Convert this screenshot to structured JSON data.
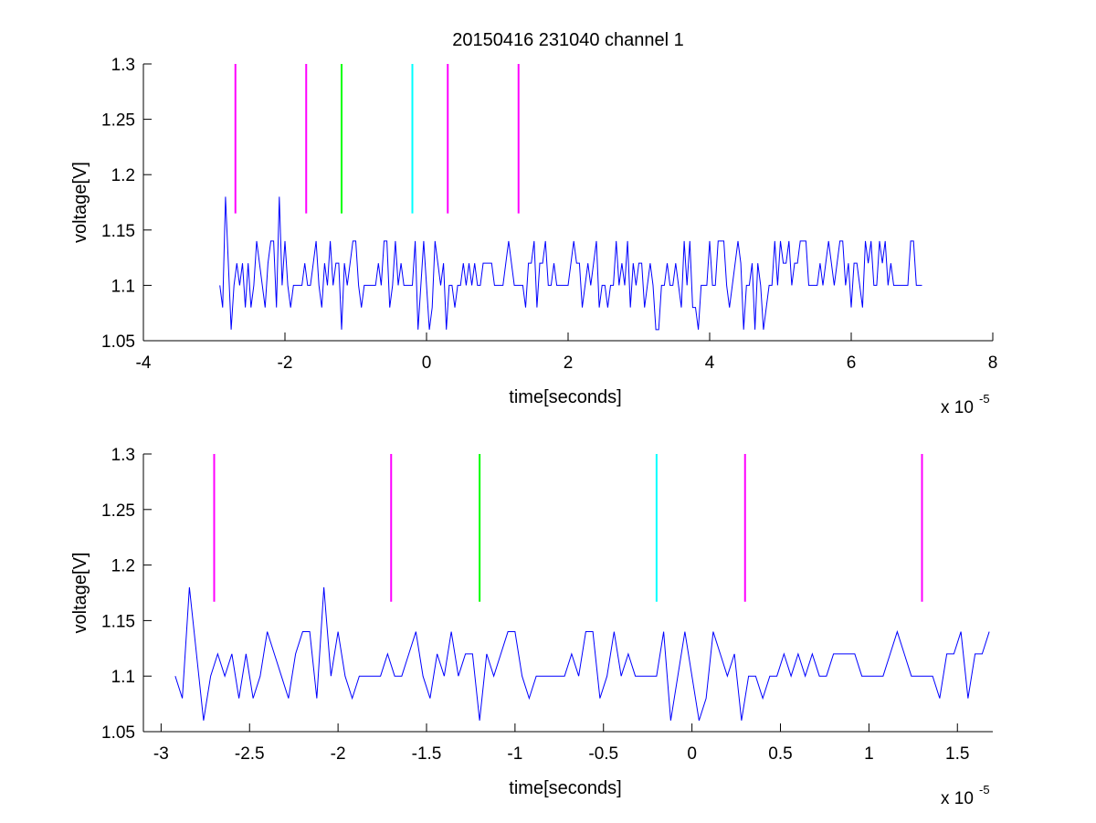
{
  "figure": {
    "title": "20150416 231040 channel 1"
  },
  "chart_data": [
    {
      "type": "line",
      "xlabel": "time[seconds]",
      "ylabel": "voltage[V]",
      "xlim": [
        -4e-05,
        8e-05
      ],
      "ylim": [
        1.05,
        1.3
      ],
      "x_ticks": [
        -4e-05,
        -2e-05,
        0,
        2e-05,
        4e-05,
        6e-05,
        8e-05
      ],
      "x_tick_labels": [
        "-4",
        "-2",
        "0",
        "2",
        "4",
        "6",
        "8"
      ],
      "y_ticks": [
        1.05,
        1.1,
        1.15,
        1.2,
        1.25,
        1.3
      ],
      "y_tick_labels": [
        "1.05",
        "1.1",
        "1.15",
        "1.2",
        "1.25",
        "1.3"
      ],
      "x_multiplier": {
        "base": "x 10",
        "exponent": "-5"
      },
      "grid": false,
      "signal": {
        "color": "#0000ff",
        "x_start": -2.92e-05,
        "x_end": 7e-05,
        "description_levels": [
          1.06,
          1.08,
          1.1,
          1.12,
          1.14,
          1.16,
          1.18
        ],
        "baseline": 1.1,
        "peaks": [
          {
            "x": -2.85e-05,
            "y": 1.18
          },
          {
            "x": -2.07e-05,
            "y": 1.18
          }
        ]
      },
      "markers": [
        {
          "x": -2.7e-05,
          "y_from": 1.165,
          "y_to": 1.3,
          "color": "#ff00ff"
        },
        {
          "x": -1.7e-05,
          "y_from": 1.165,
          "y_to": 1.3,
          "color": "#ff00ff"
        },
        {
          "x": -1.2e-05,
          "y_from": 1.165,
          "y_to": 1.3,
          "color": "#00ff00"
        },
        {
          "x": -2e-06,
          "y_from": 1.165,
          "y_to": 1.3,
          "color": "#00ffff"
        },
        {
          "x": 3e-06,
          "y_from": 1.165,
          "y_to": 1.3,
          "color": "#ff00ff"
        },
        {
          "x": 1.3e-05,
          "y_from": 1.165,
          "y_to": 1.3,
          "color": "#ff00ff"
        }
      ]
    },
    {
      "type": "line",
      "xlabel": "time[seconds]",
      "ylabel": "voltage[V]",
      "xlim": [
        -3.1e-05,
        1.7e-05
      ],
      "ylim": [
        1.05,
        1.3
      ],
      "x_ticks": [
        -3e-05,
        -2.5e-05,
        -2e-05,
        -1.5e-05,
        -1e-05,
        -5e-06,
        0,
        5e-06,
        1e-05,
        1.5e-05
      ],
      "x_tick_labels": [
        "-3",
        "-2.5",
        "-2",
        "-1.5",
        "-1",
        "-0.5",
        "0",
        "0.5",
        "1",
        "1.5"
      ],
      "y_ticks": [
        1.05,
        1.1,
        1.15,
        1.2,
        1.25,
        1.3
      ],
      "y_tick_labels": [
        "1.05",
        "1.1",
        "1.15",
        "1.2",
        "1.25",
        "1.3"
      ],
      "x_multiplier": {
        "base": "x 10",
        "exponent": "-5"
      },
      "grid": false,
      "signal": {
        "color": "#0000ff",
        "x_start": -2.92e-05,
        "x_end": 1.7e-05,
        "baseline": 1.1,
        "peaks": [
          {
            "x": -2.85e-05,
            "y": 1.18
          },
          {
            "x": -2.07e-05,
            "y": 1.18
          }
        ]
      },
      "markers": [
        {
          "x": -2.7e-05,
          "y_from": 1.167,
          "y_to": 1.3,
          "color": "#ff00ff"
        },
        {
          "x": -1.7e-05,
          "y_from": 1.167,
          "y_to": 1.3,
          "color": "#ff00ff"
        },
        {
          "x": -1.2e-05,
          "y_from": 1.167,
          "y_to": 1.3,
          "color": "#00ff00"
        },
        {
          "x": -2e-06,
          "y_from": 1.167,
          "y_to": 1.3,
          "color": "#00ffff"
        },
        {
          "x": 3e-06,
          "y_from": 1.167,
          "y_to": 1.3,
          "color": "#ff00ff"
        },
        {
          "x": 1.3e-05,
          "y_from": 1.167,
          "y_to": 1.3,
          "color": "#ff00ff"
        }
      ]
    }
  ]
}
